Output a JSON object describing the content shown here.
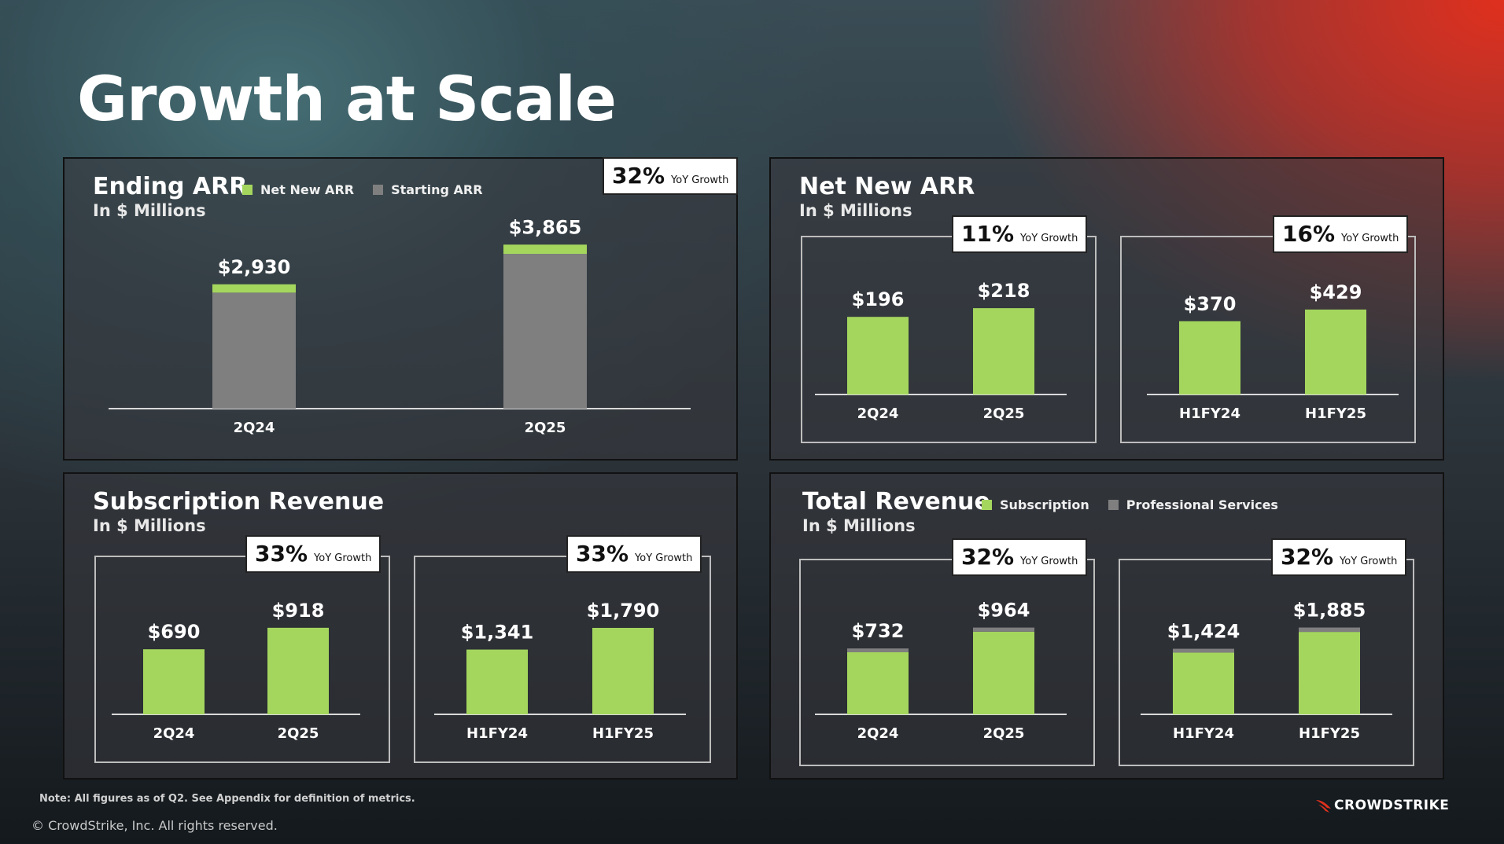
{
  "title": "Growth at Scale",
  "colors": {
    "green": "#a4d65e",
    "gray": "#7f7f7f",
    "axis": "#d9d9d9"
  },
  "panels": {
    "ending_arr": {
      "title": "Ending ARR",
      "subtitle": "In $ Millions",
      "legend": [
        {
          "label": "Net New ARR",
          "color": "#a4d65e"
        },
        {
          "label": "Starting ARR",
          "color": "#7f7f7f"
        }
      ],
      "badge": {
        "pct": "32%",
        "text": "YoY Growth"
      }
    },
    "net_new_arr": {
      "title": "Net New ARR",
      "subtitle": "In $ Millions",
      "badges": [
        {
          "pct": "11%",
          "text": "YoY Growth"
        },
        {
          "pct": "16%",
          "text": "YoY Growth"
        }
      ]
    },
    "subscription_revenue": {
      "title": "Subscription Revenue",
      "subtitle": "In $ Millions",
      "badges": [
        {
          "pct": "33%",
          "text": "YoY Growth"
        },
        {
          "pct": "33%",
          "text": "YoY Growth"
        }
      ]
    },
    "total_revenue": {
      "title": "Total Revenue",
      "subtitle": "In $ Millions",
      "legend": [
        {
          "label": "Subscription",
          "color": "#a4d65e"
        },
        {
          "label": "Professional Services",
          "color": "#7f7f7f"
        }
      ],
      "badges": [
        {
          "pct": "32%",
          "text": "YoY Growth"
        },
        {
          "pct": "32%",
          "text": "YoY Growth"
        }
      ]
    }
  },
  "chart_data": [
    {
      "id": "ending_arr",
      "type": "bar",
      "stacked": true,
      "categories": [
        "2Q24",
        "2Q25"
      ],
      "totals": [
        "$2,930",
        "$3,865"
      ],
      "series": [
        {
          "name": "Starting ARR",
          "color": "#7f7f7f",
          "values": [
            2734,
            3647
          ]
        },
        {
          "name": "Net New ARR",
          "color": "#a4d65e",
          "values": [
            196,
            218
          ]
        }
      ],
      "ylim": [
        0,
        4000
      ]
    },
    {
      "id": "net_new_arr_q",
      "type": "bar",
      "categories": [
        "2Q24",
        "2Q25"
      ],
      "labels": [
        "$196",
        "$218"
      ],
      "series": [
        {
          "color": "#a4d65e",
          "values": [
            196,
            218
          ]
        }
      ],
      "ylim": [
        0,
        250
      ]
    },
    {
      "id": "net_new_arr_h",
      "type": "bar",
      "categories": [
        "H1FY24",
        "H1FY25"
      ],
      "labels": [
        "$370",
        "$429"
      ],
      "series": [
        {
          "color": "#a4d65e",
          "values": [
            370,
            429
          ]
        }
      ],
      "ylim": [
        0,
        500
      ]
    },
    {
      "id": "sub_rev_q",
      "type": "bar",
      "categories": [
        "2Q24",
        "2Q25"
      ],
      "labels": [
        "$690",
        "$918"
      ],
      "series": [
        {
          "color": "#a4d65e",
          "values": [
            690,
            918
          ]
        }
      ],
      "ylim": [
        0,
        1050
      ]
    },
    {
      "id": "sub_rev_h",
      "type": "bar",
      "categories": [
        "H1FY24",
        "H1FY25"
      ],
      "labels": [
        "$1,341",
        "$1,790"
      ],
      "series": [
        {
          "color": "#a4d65e",
          "values": [
            1341,
            1790
          ]
        }
      ],
      "ylim": [
        0,
        2050
      ]
    },
    {
      "id": "total_rev_q",
      "type": "bar",
      "stacked": true,
      "categories": [
        "2Q24",
        "2Q25"
      ],
      "totals": [
        "$732",
        "$964"
      ],
      "series": [
        {
          "name": "Subscription",
          "color": "#a4d65e",
          "values": [
            690,
            918
          ]
        },
        {
          "name": "Professional Services",
          "color": "#7f7f7f",
          "values": [
            42,
            46
          ]
        }
      ],
      "ylim": [
        0,
        1100
      ]
    },
    {
      "id": "total_rev_h",
      "type": "bar",
      "stacked": true,
      "categories": [
        "H1FY24",
        "H1FY25"
      ],
      "totals": [
        "$1,424",
        "$1,885"
      ],
      "series": [
        {
          "name": "Subscription",
          "color": "#a4d65e",
          "values": [
            1341,
            1790
          ]
        },
        {
          "name": "Professional Services",
          "color": "#7f7f7f",
          "values": [
            83,
            95
          ]
        }
      ],
      "ylim": [
        0,
        2150
      ]
    }
  ],
  "footer": {
    "note": "Note: All figures as of Q2. See Appendix for definition of metrics.",
    "copyright": "© CrowdStrike, Inc. All rights reserved.",
    "logo_text": "CROWDSTRIKE"
  }
}
